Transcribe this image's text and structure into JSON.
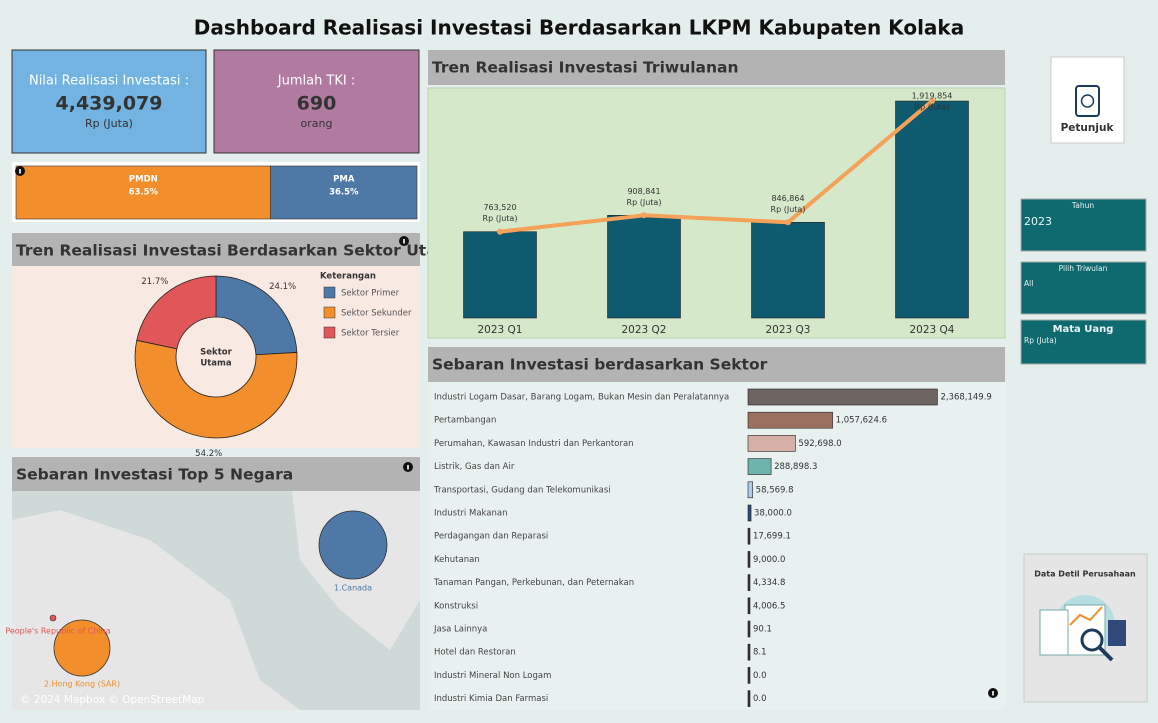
{
  "title": "Dashboard Realisasi Investasi Berdasarkan LKPM  Kabupaten Kolaka",
  "kpis": [
    {
      "label": "Nilai Realisasi Investasi :",
      "value": "4,439,079",
      "unit": "Rp (Juta)",
      "color": "#72b3e2"
    },
    {
      "label": "Jumlah TKI :",
      "value": "690",
      "unit": "orang",
      "color": "#b07aa1"
    }
  ],
  "help_button": "Petunjuk",
  "filters": [
    {
      "label": "Tahun",
      "value": "2023"
    },
    {
      "label": "Pilih Triwulan",
      "value": "All"
    },
    {
      "label": "Mata Uang",
      "value": "Rp (Juta)"
    }
  ],
  "company_panel": "Data Detil Perusahaan",
  "map": {
    "title": "Sebaran Investasi Top 5 Negara",
    "points": [
      {
        "label": "1.Canada",
        "color": "#4e79a7"
      },
      {
        "label": "2.Hong Kong (SAR)",
        "color": "#f28e2b"
      },
      {
        "label": "People's Republic of China",
        "color": "#e15759"
      }
    ],
    "attribution": "© 2024 Mapbox © OpenStreetMap"
  },
  "chart_data": [
    {
      "type": "stacked-bar",
      "series": [
        {
          "name": "PMDN",
          "color": "#f28e2b",
          "values": [
            63.5
          ],
          "value_labels": [
            "63.5%"
          ]
        },
        {
          "name": "PMA",
          "color": "#4e79a7",
          "values": [
            36.5
          ],
          "value_labels": [
            "36.5%"
          ]
        }
      ],
      "xlim": [
        0,
        100
      ]
    },
    {
      "type": "combo",
      "title": "Tren Realisasi Investasi Triwulanan",
      "categories": [
        "2023 Q1",
        "2023 Q2",
        "2023 Q3",
        "2023 Q4"
      ],
      "values": [
        763520,
        908841,
        846864,
        1919854
      ],
      "value_labels": [
        "763,520",
        "908,841",
        "846,864",
        "1,919,854"
      ],
      "value_unit": "Rp (Juta)",
      "color": "#0e5a6e",
      "line_color": "#f4a259",
      "ylim": [
        0,
        2000000
      ]
    },
    {
      "type": "donut",
      "title": "Tren Realisasi Investasi Berdasarkan Sektor Utama",
      "center_label": [
        "Sektor",
        "Utama"
      ],
      "legend_title": "Keterangan",
      "categories": [
        "Sektor Primer",
        "Sektor Sekunder",
        "Sektor Tersier"
      ],
      "values": [
        24.1,
        54.2,
        21.7
      ],
      "value_labels": [
        "24.1%",
        "54.2%",
        "21.7%"
      ],
      "colors": [
        "#4e79a7",
        "#f28e2b",
        "#e15759"
      ]
    },
    {
      "type": "hbar",
      "title": "Sebaran Investasi berdasarkan Sektor",
      "categories": [
        "Industri Logam Dasar, Barang Logam, Bukan Mesin dan Peralatannya",
        "Pertambangan",
        "Perumahan, Kawasan Industri dan Perkantoran",
        "Listrik, Gas dan Air",
        "Transportasi, Gudang dan Telekomunikasi",
        "Industri Makanan",
        "Perdagangan dan Reparasi",
        "Kehutanan",
        "Tanaman Pangan, Perkebunan, dan Peternakan",
        "Konstruksi",
        "Jasa Lainnya",
        "Hotel dan Restoran",
        "Industri Mineral Non Logam",
        "Industri Kimia Dan Farmasi"
      ],
      "values": [
        2368149.9,
        1057624.6,
        592698.0,
        288898.3,
        58569.8,
        38000.0,
        17699.1,
        9000.0,
        4334.8,
        4006.5,
        90.1,
        8.1,
        0.0,
        0.0
      ],
      "value_labels": [
        "2,368,149.9",
        "1,057,624.6",
        "592,698.0",
        "288,898.3",
        "58,569.8",
        "38,000.0",
        "17,699.1",
        "9,000.0",
        "4,334.8",
        "4,006.5",
        "90.1",
        "8.1",
        "0.0",
        "0.0"
      ],
      "colors": [
        "#6e6462",
        "#9c7060",
        "#d4b0a6",
        "#6fb3ad",
        "#aecbe8",
        "#2f4a7a",
        "#333333",
        "#333333",
        "#333333",
        "#333333",
        "#333333",
        "#333333",
        "#333333",
        "#333333"
      ],
      "xlim": [
        0,
        2400000
      ]
    }
  ]
}
